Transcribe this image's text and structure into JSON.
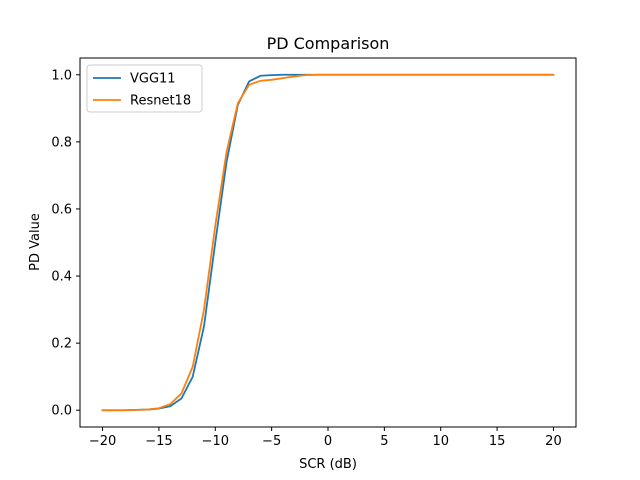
{
  "chart_data": {
    "type": "line",
    "title": "PD Comparison",
    "xlabel": "SCR (dB)",
    "ylabel": "PD Value",
    "xlim": [
      -22,
      22
    ],
    "ylim": [
      -0.05,
      1.05
    ],
    "xticks": [
      -20,
      -15,
      -10,
      -5,
      0,
      5,
      10,
      15,
      20
    ],
    "xtick_labels": [
      "−20",
      "−15",
      "−10",
      "−5",
      "0",
      "5",
      "10",
      "15",
      "20"
    ],
    "yticks": [
      0.0,
      0.2,
      0.4,
      0.6,
      0.8,
      1.0
    ],
    "ytick_labels": [
      "0.0",
      "0.2",
      "0.4",
      "0.6",
      "0.8",
      "1.0"
    ],
    "grid": false,
    "legend_position": "top-left",
    "x": [
      -20,
      -19,
      -18,
      -17,
      -16,
      -15,
      -14,
      -13,
      -12,
      -11,
      -10,
      -9,
      -8,
      -7,
      -6,
      -5,
      -4,
      -3,
      -2,
      -1,
      0,
      1,
      2,
      3,
      4,
      5,
      6,
      7,
      8,
      9,
      10,
      11,
      12,
      13,
      14,
      15,
      16,
      17,
      18,
      19,
      20
    ],
    "series": [
      {
        "name": "VGG11",
        "color": "#1f77b4",
        "values": [
          0.0,
          0.0,
          0.0,
          0.001,
          0.002,
          0.005,
          0.012,
          0.035,
          0.1,
          0.25,
          0.5,
          0.74,
          0.91,
          0.98,
          0.997,
          0.999,
          1.0,
          1.0,
          1.0,
          1.0,
          1.0,
          1.0,
          1.0,
          1.0,
          1.0,
          1.0,
          1.0,
          1.0,
          1.0,
          1.0,
          1.0,
          1.0,
          1.0,
          1.0,
          1.0,
          1.0,
          1.0,
          1.0,
          1.0,
          1.0,
          1.0
        ]
      },
      {
        "name": "Resnet18",
        "color": "#ff7f0e",
        "values": [
          0.0,
          0.0,
          0.0,
          0.001,
          0.002,
          0.006,
          0.018,
          0.05,
          0.13,
          0.3,
          0.55,
          0.77,
          0.915,
          0.97,
          0.982,
          0.985,
          0.99,
          0.995,
          0.999,
          1.0,
          1.0,
          1.0,
          1.0,
          1.0,
          1.0,
          1.0,
          1.0,
          1.0,
          1.0,
          1.0,
          1.0,
          1.0,
          1.0,
          1.0,
          1.0,
          1.0,
          1.0,
          1.0,
          1.0,
          1.0,
          1.0
        ]
      }
    ]
  }
}
